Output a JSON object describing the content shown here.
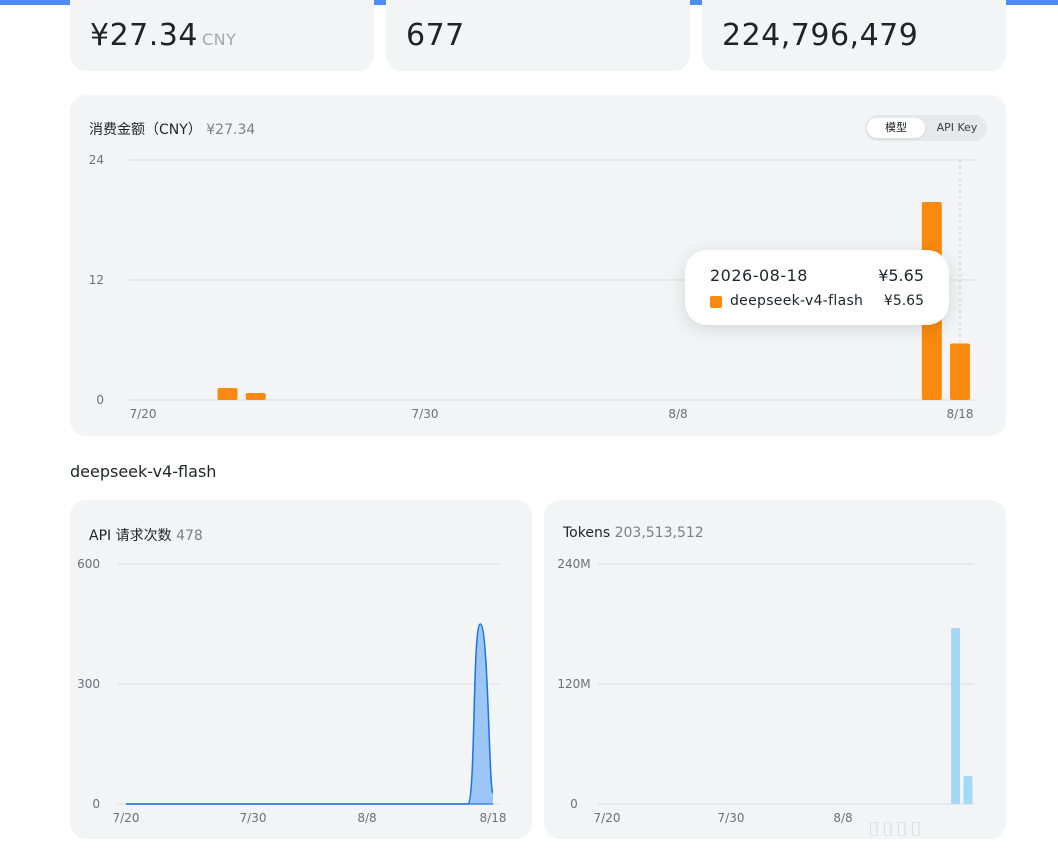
{
  "stats": [
    {
      "value": "¥27.34",
      "unit": "CNY"
    },
    {
      "value": "677",
      "unit": ""
    },
    {
      "value": "224,796,479",
      "unit": ""
    }
  ],
  "cost_card": {
    "title": "消费金额（CNY）",
    "total": "¥27.34",
    "toggle": {
      "active": "模型",
      "inactive": "API Key"
    }
  },
  "tooltip": {
    "date": "2026-08-18",
    "total": "¥5.65",
    "series_name": "deepseek-v4-flash",
    "series_value": "¥5.65",
    "swatch_color": "#f98a0f"
  },
  "section_title": "deepseek-v4-flash",
  "requests_card": {
    "title": "API 请求次数",
    "total": "478"
  },
  "tokens_card": {
    "title": "Tokens",
    "total": "203,513,512"
  },
  "watermark": "⌷⌷⌷⌷",
  "chart_data": [
    {
      "type": "bar",
      "title": "消费金额（CNY）",
      "y_ticks": [
        "0",
        "12",
        "24"
      ],
      "x_ticks": [
        "7/20",
        "7/30",
        "8/8",
        "8/18"
      ],
      "ylim": [
        0,
        24
      ],
      "color": "#f98a0f",
      "grid": true,
      "series": [
        {
          "name": "deepseek-v4-flash",
          "points": [
            {
              "x": "2026-07-23",
              "y": 1.2
            },
            {
              "x": "2026-07-24",
              "y": 0.7
            },
            {
              "x": "2026-08-17",
              "y": 19.8
            },
            {
              "x": "2026-08-18",
              "y": 5.65
            }
          ]
        }
      ]
    },
    {
      "type": "area",
      "title": "API 请求次数",
      "y_ticks": [
        "0",
        "300",
        "600"
      ],
      "x_ticks": [
        "7/20",
        "7/30",
        "8/8",
        "8/18"
      ],
      "ylim": [
        0,
        600
      ],
      "color": "#1a73e8",
      "fill": "#9cc6f5",
      "grid": true,
      "series": [
        {
          "name": "",
          "points": [
            {
              "x": "2026-07-20",
              "y": 0
            },
            {
              "x": "2026-08-16",
              "y": 0
            },
            {
              "x": "2026-08-17",
              "y": 450
            },
            {
              "x": "2026-08-18",
              "y": 28
            }
          ]
        }
      ]
    },
    {
      "type": "bar",
      "title": "Tokens",
      "y_ticks": [
        "0",
        "120M",
        "240M"
      ],
      "x_ticks": [
        "7/20",
        "7/30",
        "8/8"
      ],
      "ylim": [
        0,
        240000000
      ],
      "color": "#a3d8f7",
      "grid": true,
      "series": [
        {
          "name": "",
          "points": [
            {
              "x": "2026-08-17",
              "y": 176000000
            },
            {
              "x": "2026-08-18",
              "y": 28000000
            }
          ]
        }
      ]
    }
  ]
}
